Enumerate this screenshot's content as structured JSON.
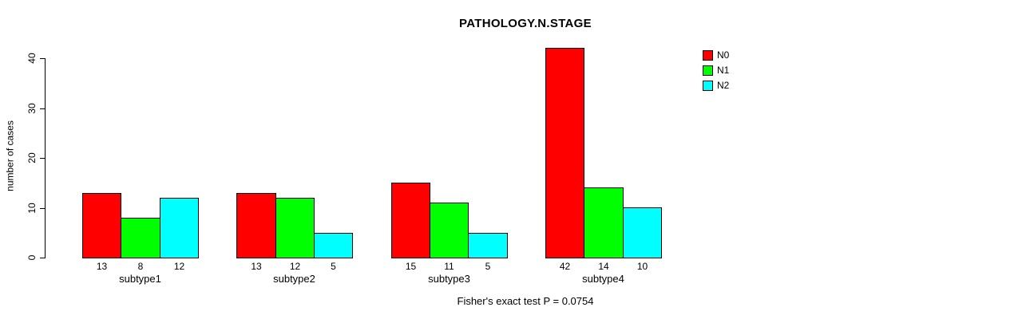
{
  "title": "PATHOLOGY.N.STAGE",
  "footer": {
    "caption": "Fisher's exact test P = 0.0754"
  },
  "chart_data": {
    "type": "bar",
    "title": "PATHOLOGY.N.STAGE",
    "categories": [
      "subtype1",
      "subtype2",
      "subtype3",
      "subtype4"
    ],
    "series": [
      {
        "name": "N0",
        "color": "#ff0000",
        "values": [
          13,
          13,
          15,
          42
        ]
      },
      {
        "name": "N1",
        "color": "#00ff00",
        "values": [
          8,
          12,
          11,
          14
        ]
      },
      {
        "name": "N2",
        "color": "#00ffff",
        "values": [
          12,
          5,
          5,
          10
        ]
      }
    ],
    "bar_value_labels": [
      [
        13,
        8,
        12
      ],
      [
        13,
        12,
        5
      ],
      [
        15,
        11,
        5
      ],
      [
        42,
        14,
        10
      ]
    ],
    "xlabel": "",
    "ylabel": "number of cases",
    "yticks": [
      0,
      10,
      20,
      30,
      40
    ],
    "ylim": [
      0,
      42
    ],
    "grid": false,
    "legend_position": "top-right",
    "annotation": "Fisher's exact test P = 0.0754"
  }
}
